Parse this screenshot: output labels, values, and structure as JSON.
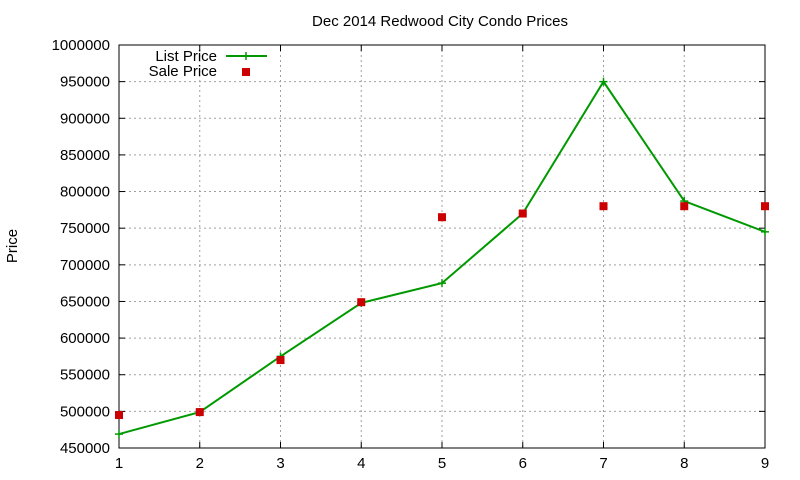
{
  "chart_data": {
    "type": "line",
    "title": "Dec 2014 Redwood City Condo Prices",
    "xlabel": "",
    "ylabel": "Price",
    "x": [
      1,
      2,
      3,
      4,
      5,
      6,
      7,
      8,
      9
    ],
    "xlim": [
      1,
      9
    ],
    "ylim": [
      450000,
      1000000
    ],
    "xticks": [
      "1",
      "2",
      "3",
      "4",
      "5",
      "6",
      "7",
      "8",
      "9"
    ],
    "yticks": [
      "450000",
      "500000",
      "550000",
      "600000",
      "650000",
      "700000",
      "750000",
      "800000",
      "850000",
      "900000",
      "950000",
      "1000000"
    ],
    "grid": true,
    "legend": "top-left",
    "series": [
      {
        "name": "List Price",
        "style": "line-with-plus-markers",
        "color": "#009900",
        "values": [
          469000,
          499000,
          575000,
          648000,
          675000,
          770000,
          950000,
          787000,
          745000
        ]
      },
      {
        "name": "Sale Price",
        "style": "square-markers",
        "color": "#cc0000",
        "values": [
          495000,
          499000,
          570000,
          649000,
          765000,
          770000,
          780000,
          780000,
          780000
        ]
      }
    ]
  }
}
